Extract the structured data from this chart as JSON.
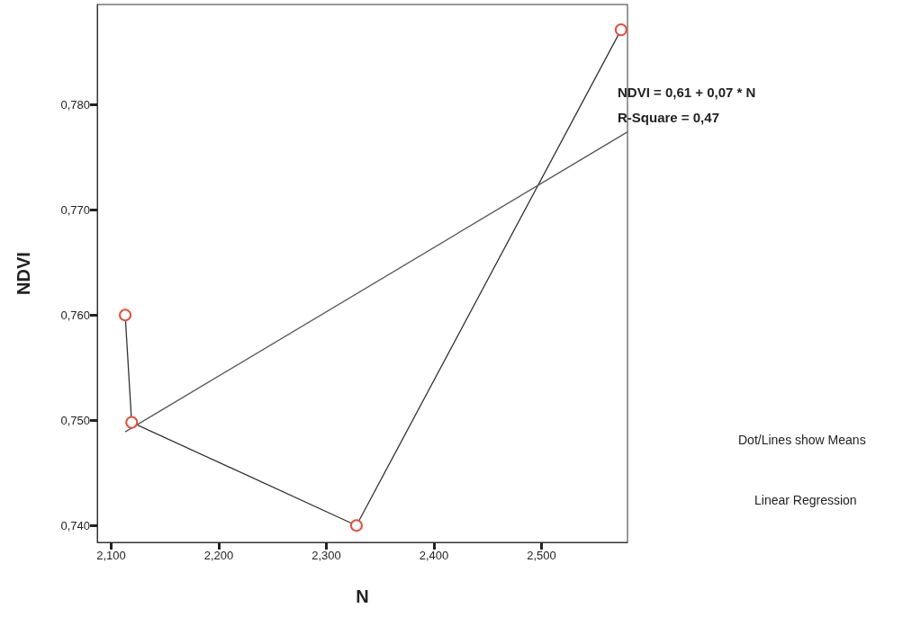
{
  "chart_data": {
    "type": "line",
    "xlabel": "N",
    "ylabel": "NDVI",
    "xlim": [
      2.087,
      2.58
    ],
    "ylim": [
      0.7384,
      0.7895
    ],
    "xticks": [
      {
        "value": 2.1,
        "label": "2,100"
      },
      {
        "value": 2.2,
        "label": "2,200"
      },
      {
        "value": 2.3,
        "label": "2,300"
      },
      {
        "value": 2.4,
        "label": "2,400"
      },
      {
        "value": 2.5,
        "label": "2,500"
      }
    ],
    "yticks": [
      {
        "value": 0.74,
        "label": "0,740"
      },
      {
        "value": 0.75,
        "label": "0,750"
      },
      {
        "value": 0.76,
        "label": "0,760"
      },
      {
        "value": 0.77,
        "label": "0,770"
      },
      {
        "value": 0.78,
        "label": "0,780"
      }
    ],
    "grid": false,
    "series": [
      {
        "color": "#333333",
        "colors": [
          "#e0513c",
          "#e0513c",
          "#e0513c",
          "#e0513c"
        ],
        "marker": "circle",
        "x": [
          2.113,
          2.119,
          2.328,
          2.574
        ],
        "values": [
          0.76,
          0.7498,
          0.74,
          0.7871
        ]
      },
      {
        "color": "#555555",
        "marker": "none",
        "x": [
          2.113,
          2.58
        ],
        "values": [
          0.7489,
          0.7774
        ]
      }
    ],
    "annotations": [
      "NDVI = 0,61 + 0,07 * N",
      "R-Square = 0,47",
      "Dot/Lines show Means",
      "Linear Regression"
    ]
  }
}
